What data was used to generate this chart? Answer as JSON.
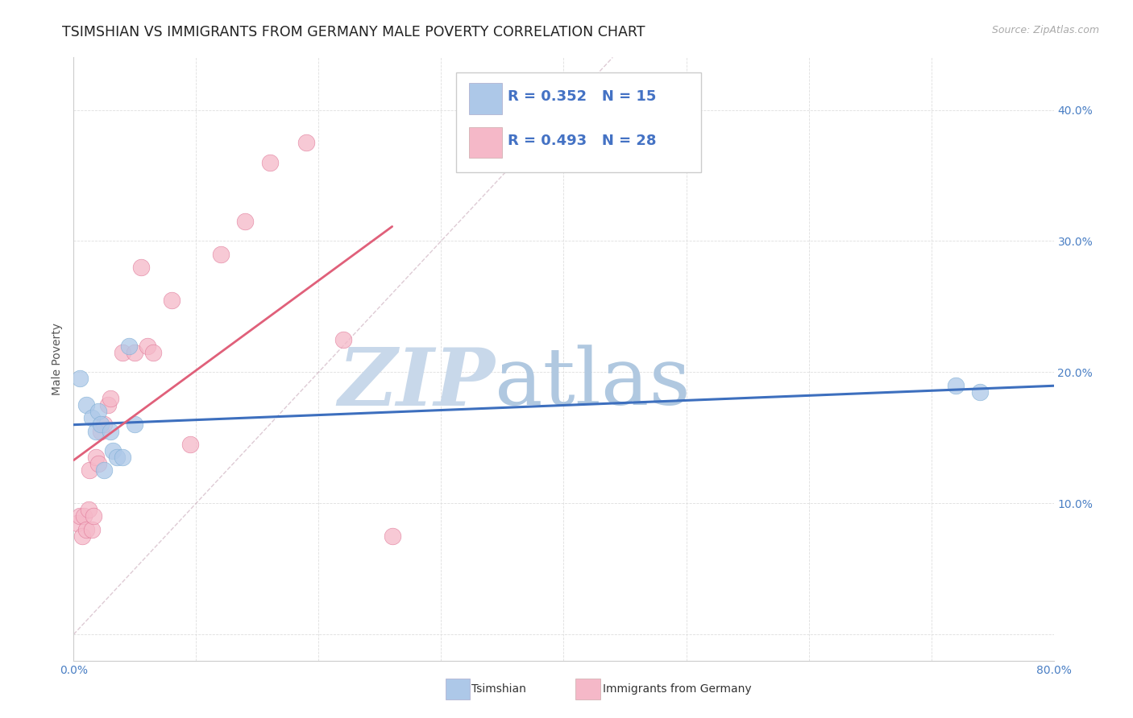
{
  "title": "TSIMSHIAN VS IMMIGRANTS FROM GERMANY MALE POVERTY CORRELATION CHART",
  "source": "Source: ZipAtlas.com",
  "ylabel": "Male Poverty",
  "xmin": 0.0,
  "xmax": 0.8,
  "ymin": -0.02,
  "ymax": 0.44,
  "xticks": [
    0.0,
    0.1,
    0.2,
    0.3,
    0.4,
    0.5,
    0.6,
    0.7,
    0.8
  ],
  "xtick_labels": [
    "0.0%",
    "",
    "",
    "",
    "",
    "",
    "",
    "",
    "80.0%"
  ],
  "yticks": [
    0.0,
    0.1,
    0.2,
    0.3,
    0.4
  ],
  "ytick_labels_right": [
    "",
    "10.0%",
    "20.0%",
    "30.0%",
    "40.0%"
  ],
  "series1_name": "Tsimshian",
  "series1_color": "#adc8e8",
  "series1_edge_color": "#7badd4",
  "series1_line_color": "#3d6fbe",
  "series1_R": 0.352,
  "series1_N": 15,
  "series2_name": "Immigrants from Germany",
  "series2_color": "#f5b8c8",
  "series2_edge_color": "#e07898",
  "series2_line_color": "#e0607a",
  "series2_R": 0.493,
  "series2_N": 28,
  "tsimshian_x": [
    0.005,
    0.01,
    0.015,
    0.018,
    0.02,
    0.022,
    0.025,
    0.03,
    0.032,
    0.035,
    0.04,
    0.045,
    0.05,
    0.72,
    0.74
  ],
  "tsimshian_y": [
    0.195,
    0.175,
    0.165,
    0.155,
    0.17,
    0.16,
    0.125,
    0.155,
    0.14,
    0.135,
    0.135,
    0.22,
    0.16,
    0.19,
    0.185
  ],
  "germany_x": [
    0.003,
    0.005,
    0.007,
    0.008,
    0.01,
    0.012,
    0.013,
    0.015,
    0.016,
    0.018,
    0.02,
    0.022,
    0.025,
    0.028,
    0.03,
    0.04,
    0.05,
    0.055,
    0.06,
    0.065,
    0.08,
    0.095,
    0.12,
    0.14,
    0.16,
    0.19,
    0.22,
    0.26
  ],
  "germany_y": [
    0.085,
    0.09,
    0.075,
    0.09,
    0.08,
    0.095,
    0.125,
    0.08,
    0.09,
    0.135,
    0.13,
    0.155,
    0.16,
    0.175,
    0.18,
    0.215,
    0.215,
    0.28,
    0.22,
    0.215,
    0.255,
    0.145,
    0.29,
    0.315,
    0.36,
    0.375,
    0.225,
    0.075
  ],
  "background_color": "#ffffff",
  "grid_color": "#dedede",
  "watermark_zip": "ZIP",
  "watermark_atlas": "atlas",
  "watermark_color_zip": "#c8d8ea",
  "watermark_color_atlas": "#b0c8e0",
  "title_fontsize": 12.5,
  "axis_label_fontsize": 10,
  "tick_fontsize": 10,
  "legend_fontsize": 13
}
